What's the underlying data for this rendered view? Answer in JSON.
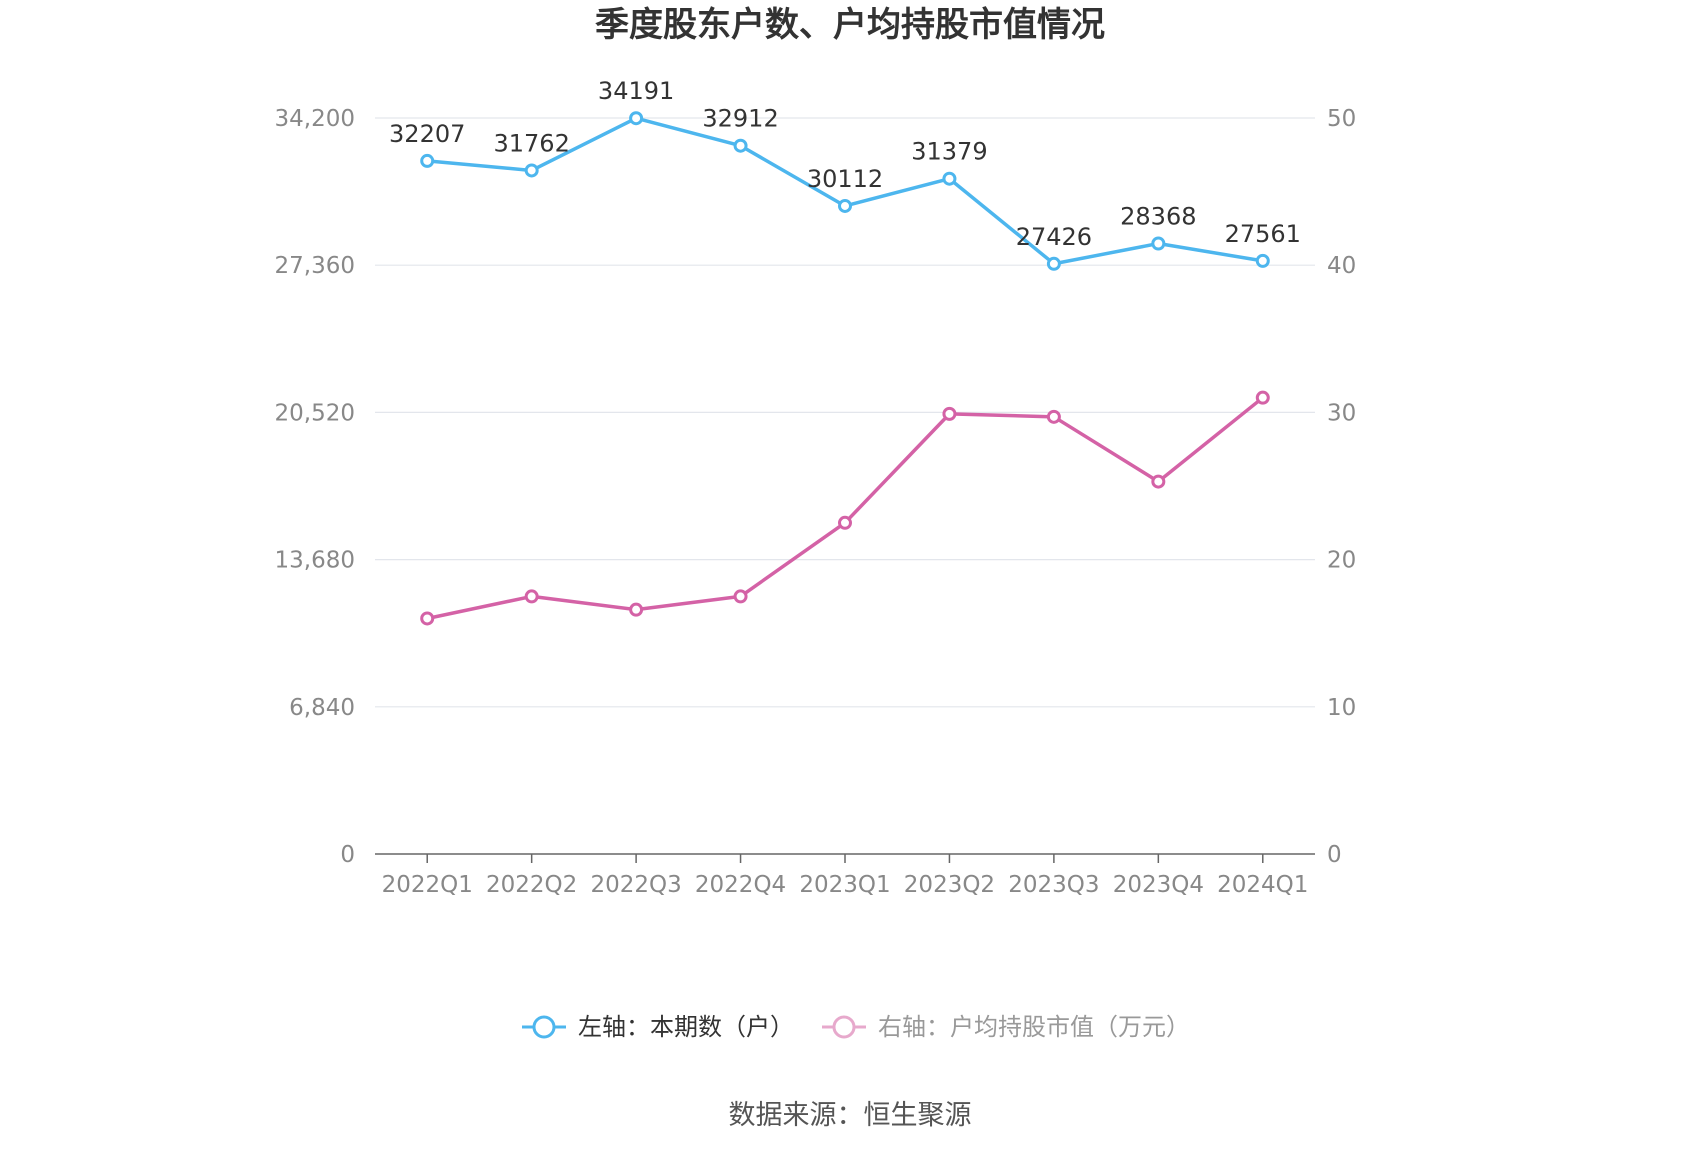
{
  "chart_data": {
    "type": "line",
    "title": "季度股东户数、户均持股市值情况",
    "categories": [
      "2022Q1",
      "2022Q2",
      "2022Q3",
      "2022Q4",
      "2023Q1",
      "2023Q2",
      "2023Q3",
      "2023Q4",
      "2024Q1"
    ],
    "left_axis": {
      "ticks": [
        "0",
        "6,840",
        "13,680",
        "20,520",
        "27,360",
        "34,200"
      ],
      "ylim": [
        0,
        34200
      ]
    },
    "right_axis": {
      "ticks": [
        "0",
        "10",
        "20",
        "30",
        "40",
        "50"
      ],
      "ylim": [
        0,
        50
      ]
    },
    "grid": true,
    "legend_position": "bottom",
    "series": [
      {
        "name": "左轴：本期数（户）",
        "axis": "left",
        "color": "#4db6ee",
        "values": [
          32207,
          31762,
          34191,
          32912,
          30112,
          31379,
          27426,
          28368,
          27561
        ],
        "labels": [
          "32207",
          "31762",
          "34191",
          "32912",
          "30112",
          "31379",
          "27426",
          "28368",
          "27561"
        ]
      },
      {
        "name": "右轴：户均持股市值（万元）",
        "axis": "right",
        "color": "#d462a6",
        "values": [
          16.0,
          17.5,
          16.6,
          17.5,
          22.5,
          29.9,
          29.7,
          25.3,
          31.0
        ]
      }
    ],
    "source": "数据来源：恒生聚源"
  }
}
